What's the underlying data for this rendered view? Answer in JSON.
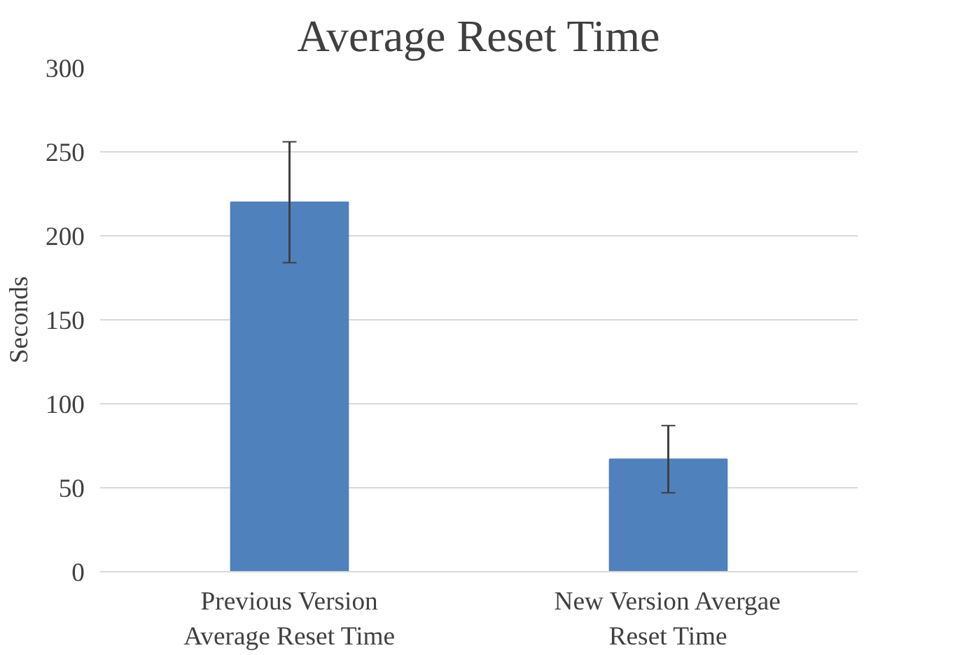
{
  "chart_data": {
    "type": "bar",
    "title": "Average Reset Time",
    "ylabel": "Seconds",
    "categories": [
      "Previous Version\nAverage Reset Time",
      "New Version Avergae\nReset Time"
    ],
    "values": [
      220,
      67
    ],
    "errors": [
      36,
      20
    ],
    "color": "#4f81bd",
    "ylim": [
      0,
      300
    ],
    "yticks": [
      0,
      50,
      100,
      150,
      200,
      250,
      300
    ],
    "grid": "y"
  }
}
